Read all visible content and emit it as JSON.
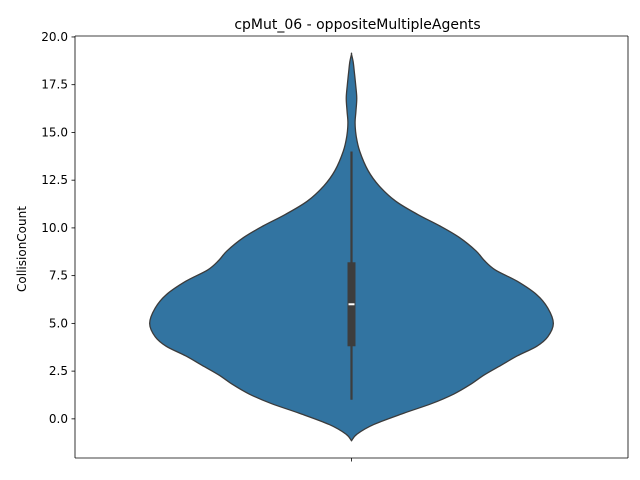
{
  "chart_data": {
    "type": "violin",
    "title": "cpMut_06 - oppositeMultipleAgents",
    "xlabel": "",
    "ylabel": "CollisionCount",
    "ylim": [
      -2.05,
      20.05
    ],
    "yticks": [
      0.0,
      2.5,
      5.0,
      7.5,
      10.0,
      12.5,
      15.0,
      17.5,
      20.0
    ],
    "ytick_labels": [
      "0.0",
      "2.5",
      "5.0",
      "7.5",
      "10.0",
      "12.5",
      "15.0",
      "17.5",
      "20.0"
    ],
    "categories": [
      ""
    ],
    "grid": false,
    "legend": "none",
    "violin": {
      "color": "#3274a1",
      "outline_color": "#3b3b3b",
      "max_half_width": 0.5,
      "density_profile": [
        {
          "y": -1.15,
          "w": 0.0
        },
        {
          "y": -0.8,
          "w": 0.02
        },
        {
          "y": -0.3,
          "w": 0.08
        },
        {
          "y": 0.3,
          "w": 0.19
        },
        {
          "y": 0.8,
          "w": 0.29
        },
        {
          "y": 1.3,
          "w": 0.37
        },
        {
          "y": 1.8,
          "w": 0.43
        },
        {
          "y": 2.3,
          "w": 0.48
        },
        {
          "y": 2.8,
          "w": 0.54
        },
        {
          "y": 3.3,
          "w": 0.6
        },
        {
          "y": 3.8,
          "w": 0.67
        },
        {
          "y": 4.3,
          "w": 0.71
        },
        {
          "y": 5.0,
          "w": 0.73
        },
        {
          "y": 5.8,
          "w": 0.71
        },
        {
          "y": 6.5,
          "w": 0.67
        },
        {
          "y": 7.2,
          "w": 0.6
        },
        {
          "y": 7.8,
          "w": 0.52
        },
        {
          "y": 8.3,
          "w": 0.48
        },
        {
          "y": 8.8,
          "w": 0.45
        },
        {
          "y": 9.5,
          "w": 0.39
        },
        {
          "y": 10.1,
          "w": 0.32
        },
        {
          "y": 10.7,
          "w": 0.24
        },
        {
          "y": 11.4,
          "w": 0.16
        },
        {
          "y": 12.2,
          "w": 0.1
        },
        {
          "y": 13.0,
          "w": 0.06
        },
        {
          "y": 14.0,
          "w": 0.03
        },
        {
          "y": 14.8,
          "w": 0.017
        },
        {
          "y": 15.5,
          "w": 0.013
        },
        {
          "y": 16.1,
          "w": 0.016
        },
        {
          "y": 16.8,
          "w": 0.019
        },
        {
          "y": 17.5,
          "w": 0.015
        },
        {
          "y": 18.2,
          "w": 0.01
        },
        {
          "y": 18.7,
          "w": 0.006
        },
        {
          "y": 19.1,
          "w": 0.0
        }
      ]
    },
    "box": {
      "whisker_low": 1.0,
      "q1": 3.8,
      "median": 6.0,
      "q3": 8.2,
      "whisker_high": 14.0,
      "box_color": "#3d3d3d",
      "median_color": "#ffffff"
    }
  }
}
